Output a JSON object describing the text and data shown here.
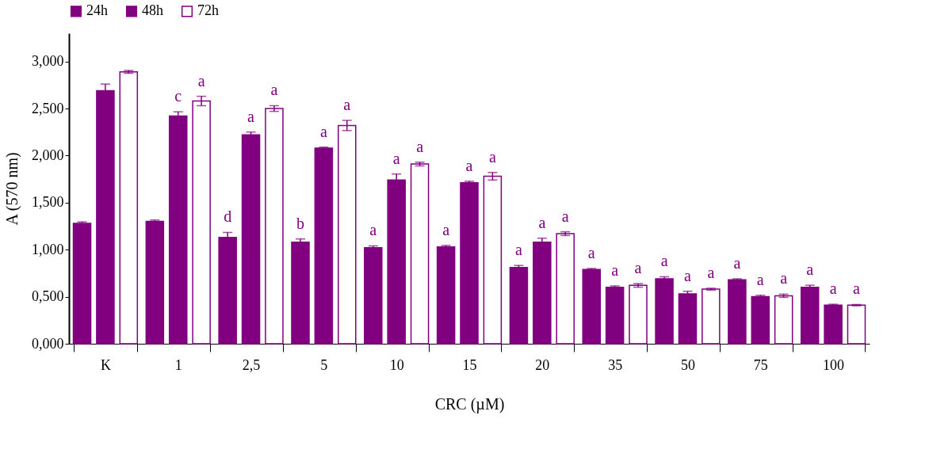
{
  "chart_data": {
    "type": "bar",
    "xlabel": "CRC (µM)",
    "ylabel": "A (570 nm)",
    "categories": [
      "K",
      "1",
      "2,5",
      "5",
      "10",
      "15",
      "20",
      "35",
      "50",
      "75",
      "100"
    ],
    "series": [
      {
        "name": "24h",
        "color": "#800080",
        "values": [
          1.28,
          1.3,
          1.13,
          1.08,
          1.02,
          1.03,
          0.81,
          0.79,
          0.69,
          0.68,
          0.6
        ],
        "errors": [
          0.015,
          0.015,
          0.053,
          0.034,
          0.02,
          0.015,
          0.022,
          0.01,
          0.022,
          0.01,
          0.022
        ],
        "value_labels": [
          null,
          null,
          "d",
          "b",
          "a",
          "a",
          "a",
          "a",
          "a",
          "a",
          "a"
        ]
      },
      {
        "name": "48h",
        "color": "#800080",
        "values": [
          2.69,
          2.42,
          2.22,
          2.08,
          1.74,
          1.71,
          1.08,
          0.6,
          0.53,
          0.5,
          0.41
        ],
        "errors": [
          0.07,
          0.045,
          0.03,
          0.01,
          0.064,
          0.017,
          0.042,
          0.015,
          0.028,
          0.015,
          0.01
        ],
        "value_labels": [
          null,
          "c",
          "a",
          "a",
          "a",
          "a",
          "a",
          "a",
          "a",
          "a",
          "a"
        ]
      },
      {
        "name": "72h",
        "color": "#ffffff",
        "values": [
          2.89,
          2.58,
          2.5,
          2.32,
          1.91,
          1.78,
          1.17,
          0.62,
          0.58,
          0.51,
          0.41
        ],
        "errors": [
          0.015,
          0.05,
          0.03,
          0.054,
          0.02,
          0.04,
          0.02,
          0.019,
          0.01,
          0.017,
          0.007
        ],
        "value_labels": [
          null,
          "a",
          "a",
          "a",
          "a",
          "a",
          "a",
          "a",
          "a",
          "a",
          "a"
        ]
      }
    ],
    "ylim": [
      0,
      3.3
    ],
    "yticks": [
      {
        "value": 0,
        "label": "0,000"
      },
      {
        "value": 0.5,
        "label": "0,500"
      },
      {
        "value": 1,
        "label": "1,000"
      },
      {
        "value": 1.5,
        "label": "1,500"
      },
      {
        "value": 2,
        "label": "2,000"
      },
      {
        "value": 2.5,
        "label": "2,500"
      },
      {
        "value": 3,
        "label": "3,000"
      }
    ],
    "legend": "top left",
    "grid": false
  }
}
